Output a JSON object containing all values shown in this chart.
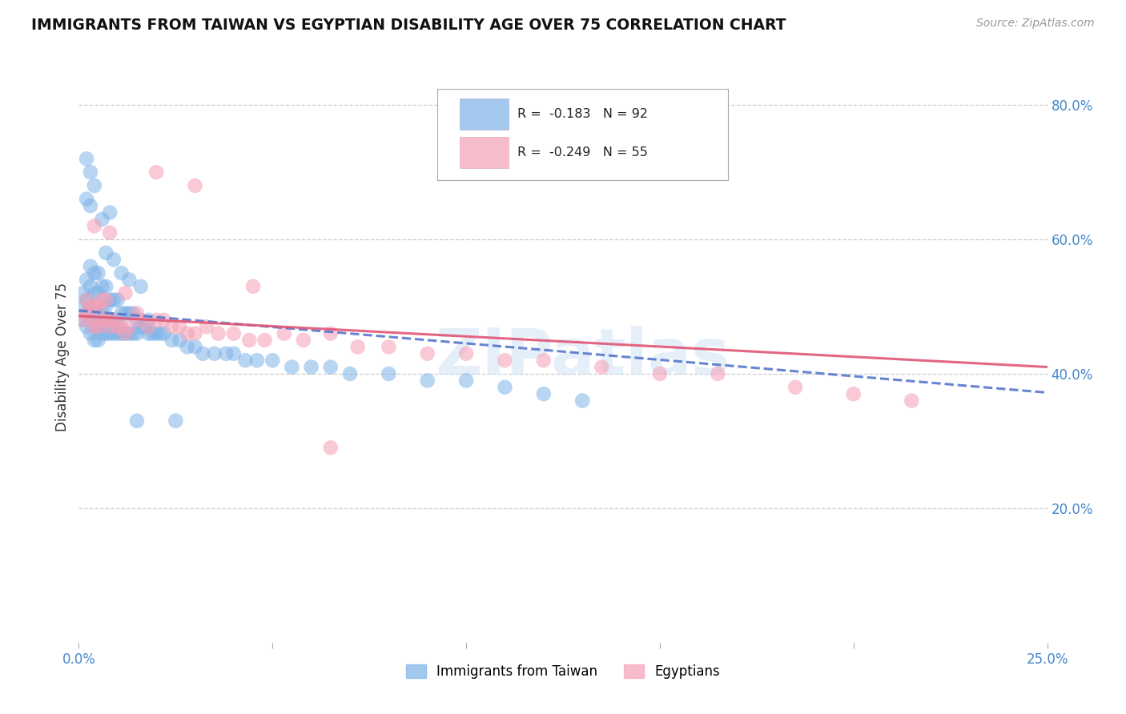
{
  "title": "IMMIGRANTS FROM TAIWAN VS EGYPTIAN DISABILITY AGE OVER 75 CORRELATION CHART",
  "source": "Source: ZipAtlas.com",
  "ylabel": "Disability Age Over 75",
  "xlim": [
    0.0,
    0.25
  ],
  "ylim": [
    0.0,
    0.85
  ],
  "xticks": [
    0.0,
    0.05,
    0.1,
    0.15,
    0.2,
    0.25
  ],
  "xtick_labels": [
    "0.0%",
    "",
    "",
    "",
    "",
    "25.0%"
  ],
  "yticks_right": [
    0.2,
    0.4,
    0.6,
    0.8
  ],
  "ytick_labels_right": [
    "20.0%",
    "40.0%",
    "60.0%",
    "80.0%"
  ],
  "taiwan_R": -0.183,
  "taiwan_N": 92,
  "egypt_R": -0.249,
  "egypt_N": 55,
  "taiwan_color": "#7eb3e8",
  "egypt_color": "#f5a0b5",
  "taiwan_line_color": "#5577cc",
  "egypt_line_color": "#e05575",
  "label_taiwan": "Immigrants from Taiwan",
  "label_egypt": "Egyptians",
  "watermark": "ZIPatlas",
  "taiwan_x": [
    0.001,
    0.001,
    0.001,
    0.002,
    0.002,
    0.002,
    0.002,
    0.003,
    0.003,
    0.003,
    0.003,
    0.003,
    0.004,
    0.004,
    0.004,
    0.004,
    0.004,
    0.005,
    0.005,
    0.005,
    0.005,
    0.005,
    0.006,
    0.006,
    0.006,
    0.006,
    0.007,
    0.007,
    0.007,
    0.007,
    0.008,
    0.008,
    0.008,
    0.009,
    0.009,
    0.009,
    0.01,
    0.01,
    0.01,
    0.011,
    0.011,
    0.012,
    0.012,
    0.013,
    0.013,
    0.014,
    0.014,
    0.015,
    0.015,
    0.016,
    0.017,
    0.018,
    0.018,
    0.019,
    0.02,
    0.021,
    0.022,
    0.024,
    0.026,
    0.028,
    0.03,
    0.032,
    0.035,
    0.038,
    0.04,
    0.043,
    0.046,
    0.05,
    0.055,
    0.06,
    0.065,
    0.07,
    0.08,
    0.09,
    0.1,
    0.11,
    0.12,
    0.13,
    0.015,
    0.025,
    0.008,
    0.006,
    0.004,
    0.003,
    0.002,
    0.002,
    0.003,
    0.007,
    0.009,
    0.011,
    0.013,
    0.016
  ],
  "taiwan_y": [
    0.48,
    0.5,
    0.52,
    0.47,
    0.49,
    0.51,
    0.54,
    0.46,
    0.48,
    0.5,
    0.53,
    0.56,
    0.45,
    0.47,
    0.49,
    0.52,
    0.55,
    0.45,
    0.47,
    0.49,
    0.52,
    0.55,
    0.46,
    0.48,
    0.5,
    0.53,
    0.46,
    0.48,
    0.5,
    0.53,
    0.46,
    0.48,
    0.51,
    0.46,
    0.48,
    0.51,
    0.46,
    0.48,
    0.51,
    0.46,
    0.49,
    0.46,
    0.49,
    0.46,
    0.49,
    0.46,
    0.49,
    0.46,
    0.48,
    0.47,
    0.47,
    0.46,
    0.48,
    0.46,
    0.46,
    0.46,
    0.46,
    0.45,
    0.45,
    0.44,
    0.44,
    0.43,
    0.43,
    0.43,
    0.43,
    0.42,
    0.42,
    0.42,
    0.41,
    0.41,
    0.41,
    0.4,
    0.4,
    0.39,
    0.39,
    0.38,
    0.37,
    0.36,
    0.33,
    0.33,
    0.64,
    0.63,
    0.68,
    0.7,
    0.72,
    0.66,
    0.65,
    0.58,
    0.57,
    0.55,
    0.54,
    0.53
  ],
  "egypt_x": [
    0.001,
    0.002,
    0.002,
    0.003,
    0.003,
    0.004,
    0.004,
    0.005,
    0.005,
    0.006,
    0.006,
    0.007,
    0.007,
    0.008,
    0.009,
    0.01,
    0.011,
    0.012,
    0.013,
    0.015,
    0.016,
    0.018,
    0.02,
    0.022,
    0.024,
    0.026,
    0.028,
    0.03,
    0.033,
    0.036,
    0.04,
    0.044,
    0.048,
    0.053,
    0.058,
    0.065,
    0.072,
    0.08,
    0.09,
    0.1,
    0.11,
    0.12,
    0.135,
    0.15,
    0.165,
    0.185,
    0.2,
    0.215,
    0.004,
    0.008,
    0.012,
    0.02,
    0.03,
    0.045,
    0.065
  ],
  "egypt_y": [
    0.48,
    0.49,
    0.51,
    0.48,
    0.5,
    0.47,
    0.5,
    0.47,
    0.5,
    0.48,
    0.51,
    0.48,
    0.51,
    0.47,
    0.48,
    0.47,
    0.47,
    0.46,
    0.47,
    0.49,
    0.48,
    0.47,
    0.48,
    0.48,
    0.47,
    0.47,
    0.46,
    0.46,
    0.47,
    0.46,
    0.46,
    0.45,
    0.45,
    0.46,
    0.45,
    0.46,
    0.44,
    0.44,
    0.43,
    0.43,
    0.42,
    0.42,
    0.41,
    0.4,
    0.4,
    0.38,
    0.37,
    0.36,
    0.62,
    0.61,
    0.52,
    0.7,
    0.68,
    0.53,
    0.29
  ]
}
